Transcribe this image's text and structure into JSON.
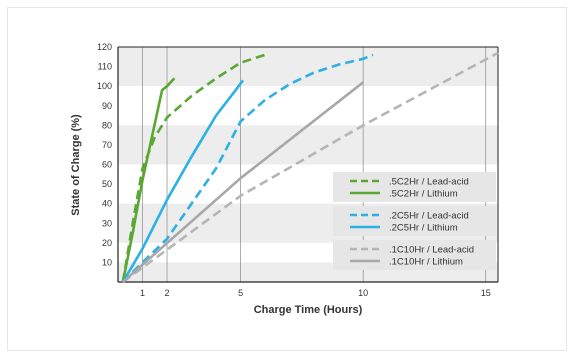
{
  "chart_data": {
    "type": "line",
    "title": "",
    "xlabel": "Charge Time (Hours)",
    "ylabel": "State of Charge (%)",
    "x_ticks": [
      1,
      2,
      5,
      10,
      15
    ],
    "y_ticks": [
      10,
      20,
      30,
      40,
      50,
      60,
      70,
      80,
      90,
      100,
      110,
      120
    ],
    "xlim": [
      0,
      15.5
    ],
    "ylim": [
      0,
      120
    ],
    "grid": "vertical lines at x ticks, alternating horizontal bands",
    "legend_position": "right",
    "series": [
      {
        "name": ".5C2Hr / Lead-acid",
        "color": "#5aa832",
        "dash": true,
        "points": [
          [
            0.2,
            0
          ],
          [
            0.6,
            30
          ],
          [
            1.0,
            58
          ],
          [
            1.5,
            74
          ],
          [
            2.0,
            84
          ],
          [
            3.0,
            95
          ],
          [
            4.0,
            104
          ],
          [
            5.0,
            112
          ],
          [
            6.0,
            116
          ]
        ]
      },
      {
        "name": ".5C2Hr / Lithium",
        "color": "#5aa832",
        "dash": false,
        "points": [
          [
            0.2,
            0
          ],
          [
            0.6,
            25
          ],
          [
            1.0,
            52
          ],
          [
            1.4,
            75
          ],
          [
            1.8,
            98
          ],
          [
            2.0,
            100
          ],
          [
            2.3,
            104
          ]
        ]
      },
      {
        "name": ".2C5Hr / Lead-acid",
        "color": "#2bb1e3",
        "dash": true,
        "points": [
          [
            0.2,
            0
          ],
          [
            1.0,
            10
          ],
          [
            2.0,
            22
          ],
          [
            3.0,
            40
          ],
          [
            4.0,
            58
          ],
          [
            5.0,
            82
          ],
          [
            6.0,
            93
          ],
          [
            7.0,
            101
          ],
          [
            8.0,
            107
          ],
          [
            9.0,
            111
          ],
          [
            10.0,
            114
          ],
          [
            10.4,
            116
          ]
        ]
      },
      {
        "name": ".2C5Hr / Lithium",
        "color": "#2bb1e3",
        "dash": false,
        "points": [
          [
            0.2,
            0
          ],
          [
            1.0,
            17
          ],
          [
            2.0,
            42
          ],
          [
            3.0,
            64
          ],
          [
            4.0,
            85
          ],
          [
            4.8,
            98
          ],
          [
            5.1,
            103
          ]
        ]
      },
      {
        "name": ".1C10Hr / Lead-acid",
        "color": "#b5b5b5",
        "dash": true,
        "points": [
          [
            0.2,
            0
          ],
          [
            5.0,
            44
          ],
          [
            10.0,
            80
          ],
          [
            15.5,
            117
          ]
        ]
      },
      {
        "name": ".1C10Hr / Lithium",
        "color": "#a8a8a8",
        "dash": false,
        "points": [
          [
            0.2,
            0
          ],
          [
            5.0,
            53
          ],
          [
            10.0,
            102
          ]
        ]
      }
    ]
  }
}
